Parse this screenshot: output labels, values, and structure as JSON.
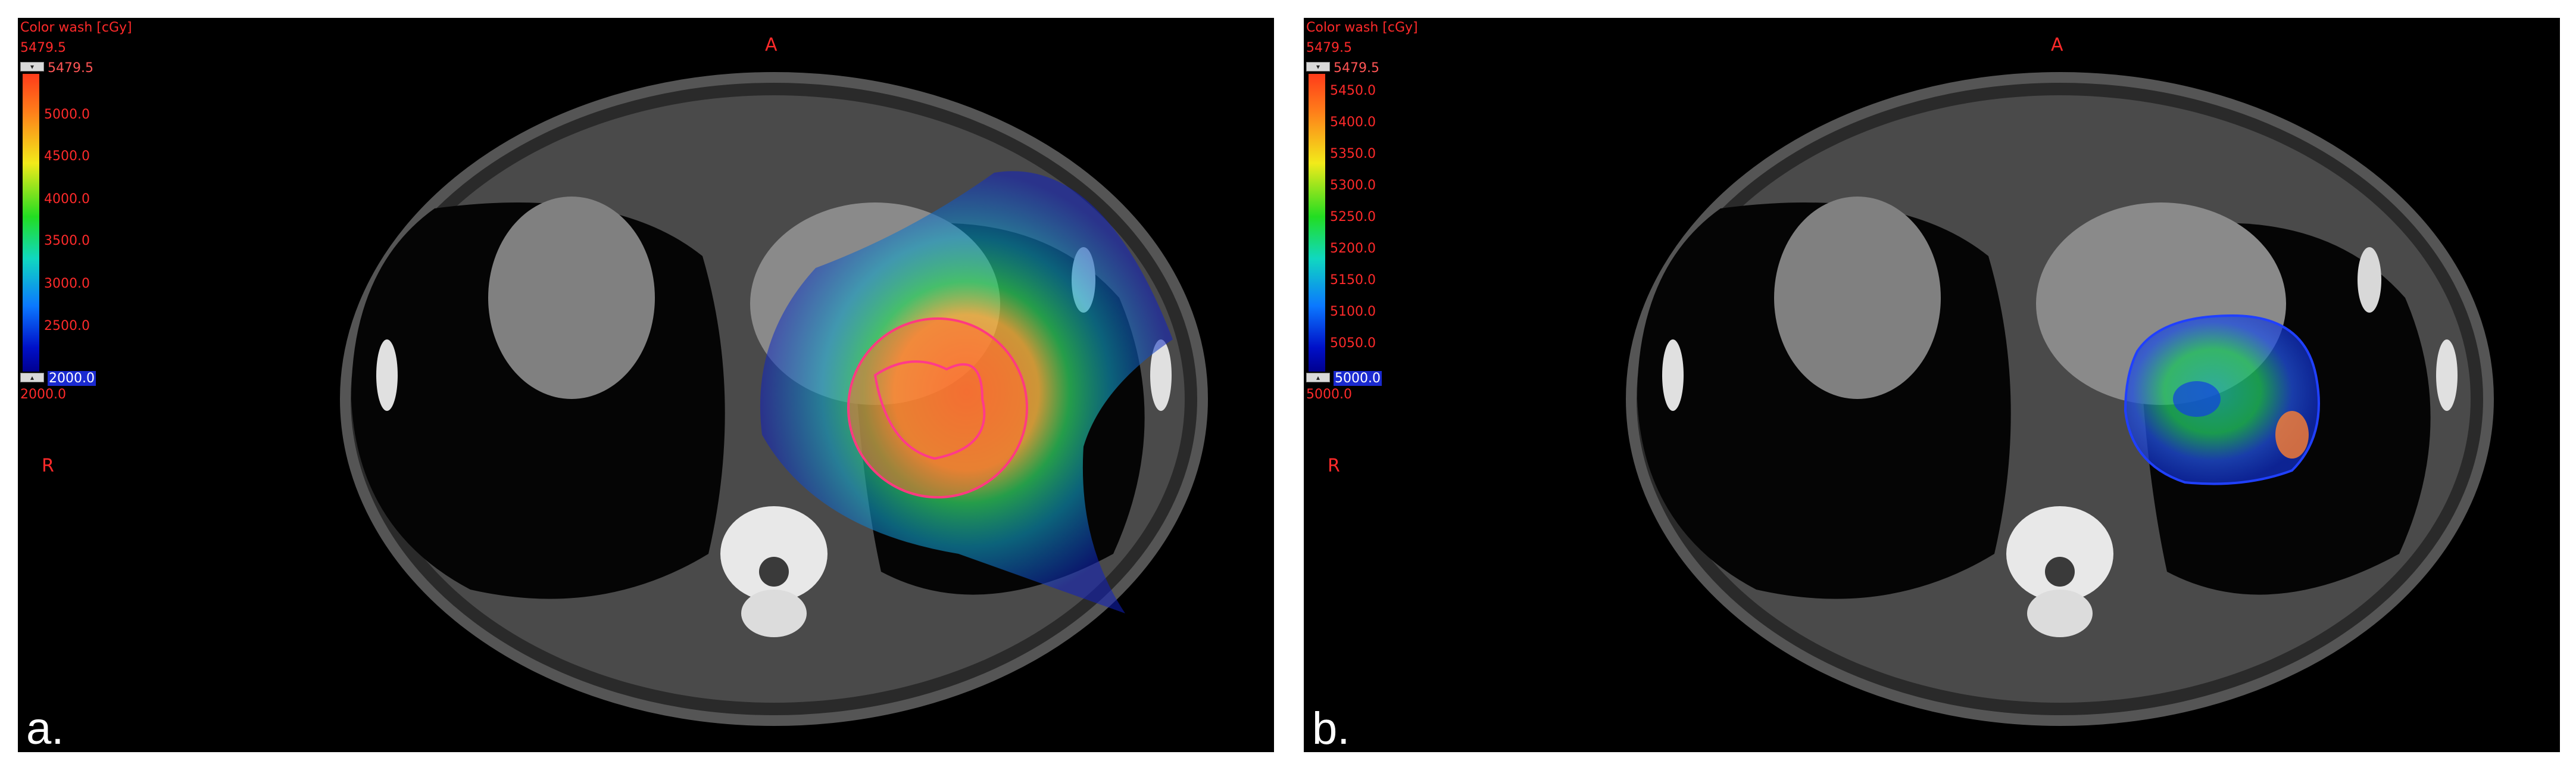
{
  "panels": [
    {
      "label": "a.",
      "colorwash": {
        "title": "Color wash [cGy]",
        "max": "5479.5",
        "min": "2000.0",
        "top_value": "5479.5",
        "bottom_value": "2000.0",
        "ticks": [
          "5000.0",
          "4500.0",
          "4000.0",
          "3500.0",
          "3000.0",
          "2500.0"
        ]
      },
      "orientation": {
        "anterior": "A",
        "right": "R"
      }
    },
    {
      "label": "b.",
      "colorwash": {
        "title": "Color wash [cGy]",
        "max": "5479.5",
        "min": "5000.0",
        "top_value": "5479.5",
        "bottom_value": "5000.0",
        "ticks": [
          "5450.0",
          "5400.0",
          "5350.0",
          "5300.0",
          "5250.0",
          "5200.0",
          "5150.0",
          "5100.0",
          "5050.0"
        ]
      },
      "orientation": {
        "anterior": "A",
        "right": "R"
      }
    }
  ],
  "colors": {
    "overlay_text": "#ff2a2a",
    "background": "#000000",
    "label_text": "#ffffff"
  }
}
